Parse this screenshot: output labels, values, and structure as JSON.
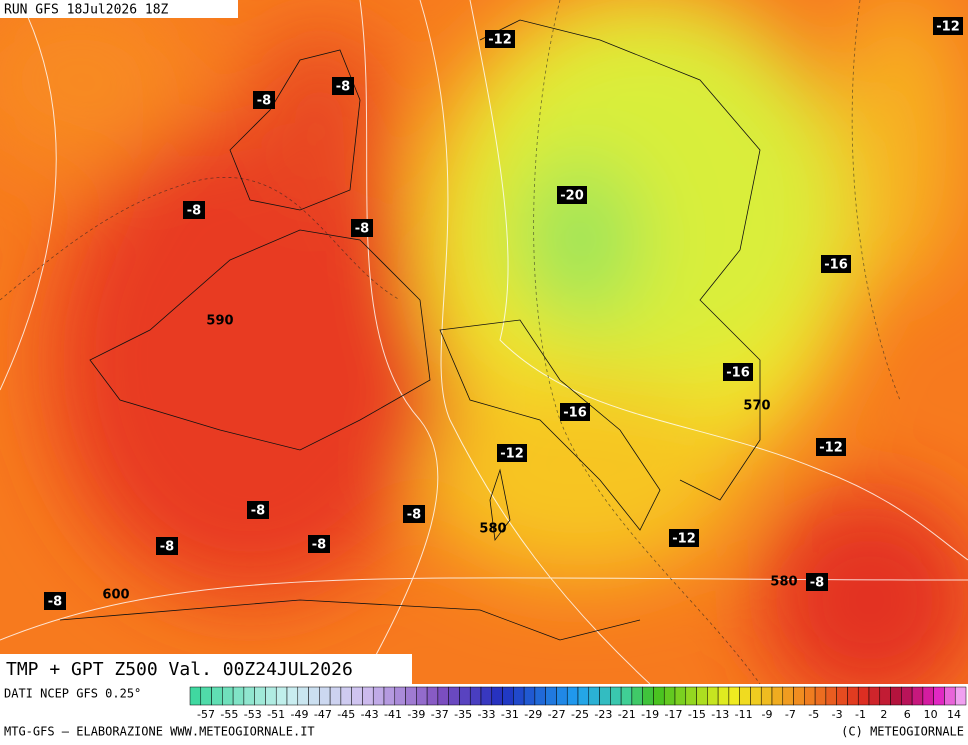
{
  "header": {
    "run": "RUN GFS 18Jul2026 18Z"
  },
  "map": {
    "title": "TMP + GPT Z500 Val. 00Z24JUL2026",
    "labels": [
      {
        "text": "-12",
        "boxed": true
      },
      {
        "text": "-12",
        "boxed": true
      },
      {
        "text": "-8",
        "boxed": true
      },
      {
        "text": "-8",
        "boxed": true
      },
      {
        "text": "-8",
        "boxed": true
      },
      {
        "text": "-8",
        "boxed": true
      },
      {
        "text": "-20",
        "boxed": true
      },
      {
        "text": "-16",
        "boxed": true
      },
      {
        "text": "590",
        "boxed": false
      },
      {
        "text": "-16",
        "boxed": true
      },
      {
        "text": "570",
        "boxed": false
      },
      {
        "text": "-16",
        "boxed": true
      },
      {
        "text": "-12",
        "boxed": true
      },
      {
        "text": "-12",
        "boxed": true
      },
      {
        "text": "-8",
        "boxed": true
      },
      {
        "text": "-8",
        "boxed": true
      },
      {
        "text": "580",
        "boxed": false
      },
      {
        "text": "-8",
        "boxed": true
      },
      {
        "text": "-8",
        "boxed": true
      },
      {
        "text": "-12",
        "boxed": true
      },
      {
        "text": "580",
        "boxed": false
      },
      {
        "text": "-8",
        "boxed": true
      },
      {
        "text": "-8",
        "boxed": true
      },
      {
        "text": "600",
        "boxed": false
      }
    ]
  },
  "footer": {
    "source": "DATI NCEP GFS 0.25°",
    "credit": "MTG-GFS — ELABORAZIONE WWW.METEOGIORNALE.IT",
    "copyright": "(C) METEOGIORNALE",
    "scale": [
      "-57",
      "-55",
      "-53",
      "-51",
      "-49",
      "-47",
      "-45",
      "-43",
      "-41",
      "-39",
      "-37",
      "-35",
      "-33",
      "-31",
      "-29",
      "-27",
      "-25",
      "-23",
      "-21",
      "-19",
      "-17",
      "-15",
      "-13",
      "-11",
      "-9",
      "-7",
      "-5",
      "-3",
      "-1",
      "2",
      "6",
      "10",
      "14"
    ]
  }
}
